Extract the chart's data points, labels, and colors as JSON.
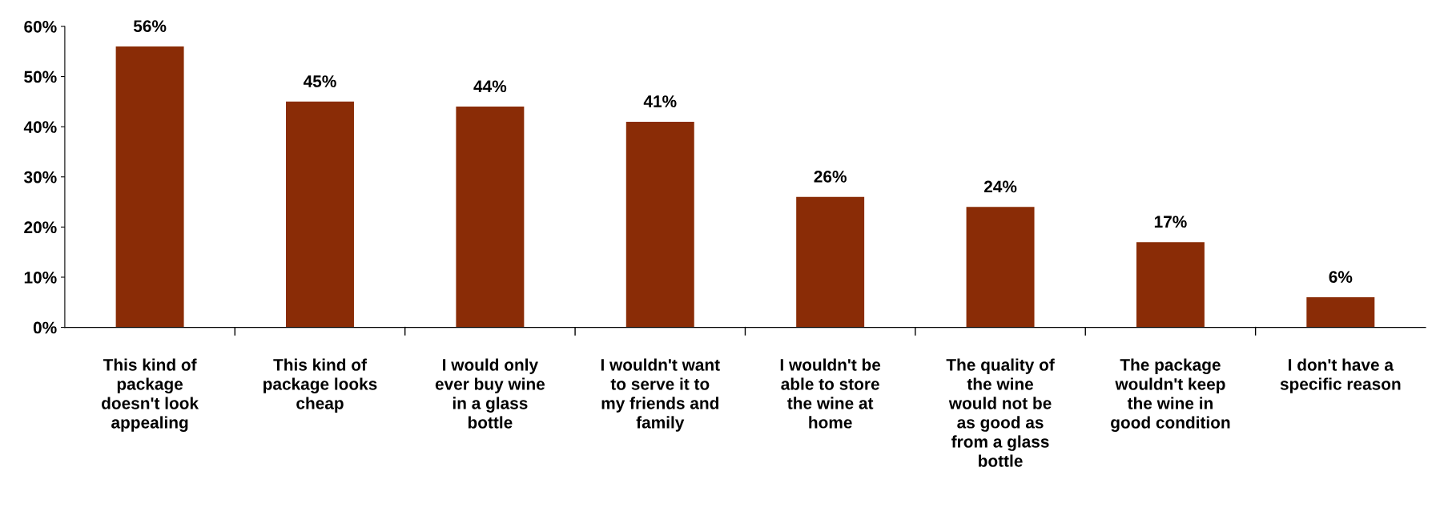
{
  "chart_data": {
    "type": "bar",
    "categories": [
      "This kind of\npackage\ndoesn't look\nappealing",
      "This kind of\npackage looks\ncheap",
      "I would only\never buy wine\nin a glass\nbottle",
      "I wouldn't want\nto serve it to\nmy friends and\nfamily",
      "I wouldn't be\nable to store\nthe wine at\nhome",
      "The quality of\nthe wine\nwould not be\nas good as\nfrom a glass\nbottle",
      "The package\nwouldn't keep\nthe wine in\ngood condition",
      "I don't have a\nspecific reason"
    ],
    "values": [
      56,
      45,
      44,
      41,
      26,
      24,
      17,
      6
    ],
    "value_labels": [
      "56%",
      "45%",
      "44%",
      "41%",
      "26%",
      "24%",
      "17%",
      "6%"
    ],
    "color": "#8a2c06",
    "ylim": [
      0,
      60
    ],
    "yticks": [
      {
        "value": 0,
        "label": "0%"
      },
      {
        "value": 10,
        "label": "10%"
      },
      {
        "value": 20,
        "label": "20%"
      },
      {
        "value": 30,
        "label": "30%"
      },
      {
        "value": 40,
        "label": "40%"
      },
      {
        "value": 50,
        "label": "50%"
      },
      {
        "value": 60,
        "label": "60%"
      }
    ],
    "grid": false,
    "legend": false
  }
}
